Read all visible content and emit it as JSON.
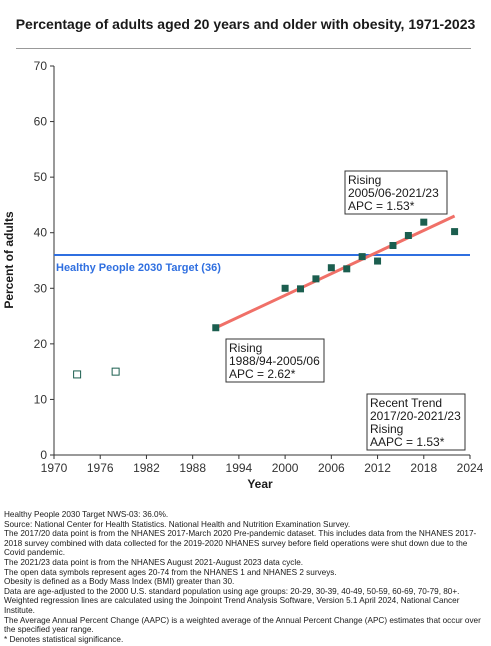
{
  "chart_data": {
    "type": "scatter",
    "title": "Percentage of adults aged 20 years and older with obesity, 1971-2023",
    "xlabel": "Year",
    "ylabel": "Percent of adults",
    "xlim": [
      1970,
      2024
    ],
    "ylim": [
      0,
      70
    ],
    "xticks": [
      1970,
      1976,
      1982,
      1988,
      1994,
      2000,
      2006,
      2012,
      2018,
      2024
    ],
    "yticks": [
      0,
      10,
      20,
      30,
      40,
      50,
      60,
      70
    ],
    "grid": false,
    "open_points": [
      {
        "x": 1973,
        "y": 14.5
      },
      {
        "x": 1978,
        "y": 15.0
      }
    ],
    "filled_points": [
      {
        "x": 1991,
        "y": 22.9
      },
      {
        "x": 2000,
        "y": 30.0
      },
      {
        "x": 2002,
        "y": 29.9
      },
      {
        "x": 2004,
        "y": 31.7
      },
      {
        "x": 2006,
        "y": 33.7
      },
      {
        "x": 2008,
        "y": 33.5
      },
      {
        "x": 2010,
        "y": 35.7
      },
      {
        "x": 2012,
        "y": 34.9
      },
      {
        "x": 2014,
        "y": 37.7
      },
      {
        "x": 2016,
        "y": 39.5
      },
      {
        "x": 2018,
        "y": 41.9
      },
      {
        "x": 2022,
        "y": 40.2
      }
    ],
    "regression_line": [
      {
        "x": 1991,
        "y": 22.9
      },
      {
        "x": 2022,
        "y": 43.0
      }
    ],
    "target": {
      "value": 36,
      "label": "Healthy People 2030 Target (36)"
    },
    "annotations": [
      {
        "lines": [
          "Rising",
          "1988/94-2005/06",
          "APC =  2.62*"
        ]
      },
      {
        "lines": [
          "Rising",
          "2005/06-2021/23",
          "APC =  1.53*"
        ]
      },
      {
        "lines": [
          "Recent Trend",
          "2017/20-2021/23",
          "Rising",
          "AAPC =  1.53*"
        ]
      }
    ],
    "colors": {
      "point_fill": "#1b5e4f",
      "regression": "#f07068",
      "target": "#2f6fe0",
      "axis": "#333333"
    }
  },
  "footnotes": [
    "Healthy People 2030 Target NWS-03: 36.0%.",
    "Source: National Center for Health Statistics. National Health and Nutrition Examination Survey.",
    "The 2017/20 data point is from the NHANES 2017-March 2020 Pre-pandemic dataset. This includes data from the NHANES 2017-2018 survey combined with data collected for the 2019-2020 NHANES survey before field operations were shut down due to the Covid pandemic.",
    "The 2021/23 data point is from the NHANES August 2021-August 2023 data cycle.",
    "The open data symbols represent ages 20-74 from the NHANES 1 and NHANES 2 surveys.",
    "Obesity is defined as a Body Mass Index (BMI) greater than 30.",
    "Data are age-adjusted to the 2000 U.S. standard population using age groups: 20-29, 30-39, 40-49, 50-59, 60-69, 70-79, 80+.",
    "Weighted regression lines are calculated using the Joinpoint Trend Analysis Software, Version 5.1 April 2024, National Cancer Institute.",
    "The Average Annual Percent Change (AAPC) is a weighted average of the Annual Percent Change (APC) estimates that occur over the specified year range.",
    "* Denotes statistical significance."
  ]
}
